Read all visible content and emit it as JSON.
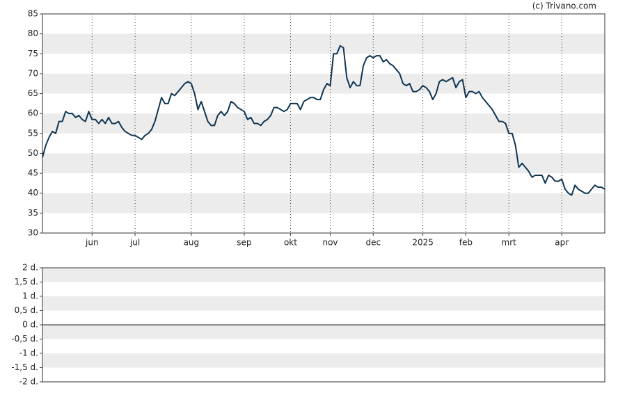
{
  "chart_data": [
    {
      "type": "line",
      "credit": "(c) Trivano.com",
      "ylim": [
        30,
        85
      ],
      "yticks": [
        30,
        35,
        40,
        45,
        50,
        55,
        60,
        65,
        70,
        75,
        80,
        85
      ],
      "xlim": [
        0,
        170
      ],
      "xticks": [
        {
          "value": 15,
          "label": "jun"
        },
        {
          "value": 28,
          "label": "jul"
        },
        {
          "value": 45,
          "label": "aug"
        },
        {
          "value": 61,
          "label": "sep"
        },
        {
          "value": 75,
          "label": "okt"
        },
        {
          "value": 87,
          "label": "nov"
        },
        {
          "value": 100,
          "label": "dec"
        },
        {
          "value": 115,
          "label": "2025"
        },
        {
          "value": 128,
          "label": "feb"
        },
        {
          "value": 141,
          "label": "mrt"
        },
        {
          "value": 157,
          "label": "apr"
        }
      ],
      "bands": true,
      "x_grid": true,
      "series": [
        {
          "color": "#0f3552",
          "values": [
            49,
            52,
            54,
            55.5,
            55,
            58,
            58,
            60.5,
            60,
            60,
            59,
            59.5,
            58.5,
            58,
            60.5,
            58.5,
            58.5,
            57.5,
            58.5,
            57.5,
            59,
            57.5,
            57.5,
            58,
            56.5,
            55.5,
            55,
            54.5,
            54.5,
            54,
            53.5,
            54.5,
            55,
            56,
            58,
            61,
            64,
            62.5,
            62.5,
            65,
            64.5,
            65.5,
            66.5,
            67.5,
            68,
            67.5,
            65,
            61,
            63,
            60.5,
            58,
            57,
            57,
            59.5,
            60.5,
            59.5,
            60.5,
            63,
            62.5,
            61.5,
            61,
            60.5,
            58.5,
            59,
            57.5,
            57.5,
            57,
            58,
            58.5,
            59.5,
            61.5,
            61.5,
            61,
            60.5,
            61,
            62.5,
            62.5,
            62.5,
            61,
            63,
            63.5,
            64,
            64,
            63.5,
            63.5,
            66,
            67.5,
            67,
            75,
            75,
            77,
            76.5,
            69,
            66.5,
            68,
            67,
            67,
            72,
            74,
            74.5,
            74,
            74.5,
            74.5,
            73,
            73.5,
            72.5,
            72,
            71,
            70,
            67.5,
            67,
            67.5,
            65.5,
            65.5,
            66,
            67,
            66.5,
            65.5,
            63.5,
            65,
            68,
            68.5,
            68,
            68.5,
            69,
            66.5,
            68,
            68.5,
            64,
            65.5,
            65.5,
            65,
            65.5,
            64,
            63,
            62,
            61,
            59.5,
            58,
            58,
            57.5,
            55,
            55,
            52,
            46.5,
            47.5,
            46.5,
            45.5,
            44,
            44.5,
            44.5,
            44.5,
            42.5,
            44.5,
            44,
            43,
            43,
            43.5,
            41,
            40,
            39.5,
            42,
            41,
            40.5,
            40,
            40,
            41,
            42,
            41.5,
            41.5,
            41
          ]
        }
      ]
    },
    {
      "type": "line",
      "ylim": [
        -2,
        2
      ],
      "yticks": [
        {
          "value": 2,
          "label": "2 d."
        },
        {
          "value": 1.5,
          "label": "1,5 d."
        },
        {
          "value": 1,
          "label": "1 d."
        },
        {
          "value": 0.5,
          "label": "0,5 d."
        },
        {
          "value": 0,
          "label": "0 d."
        },
        {
          "value": -0.5,
          "label": "-0,5 d."
        },
        {
          "value": -1,
          "label": "-1 d."
        },
        {
          "value": -1.5,
          "label": "-1,5 d."
        },
        {
          "value": -2,
          "label": "-2 d."
        }
      ],
      "bands": true,
      "zero_line": true,
      "series": []
    }
  ]
}
